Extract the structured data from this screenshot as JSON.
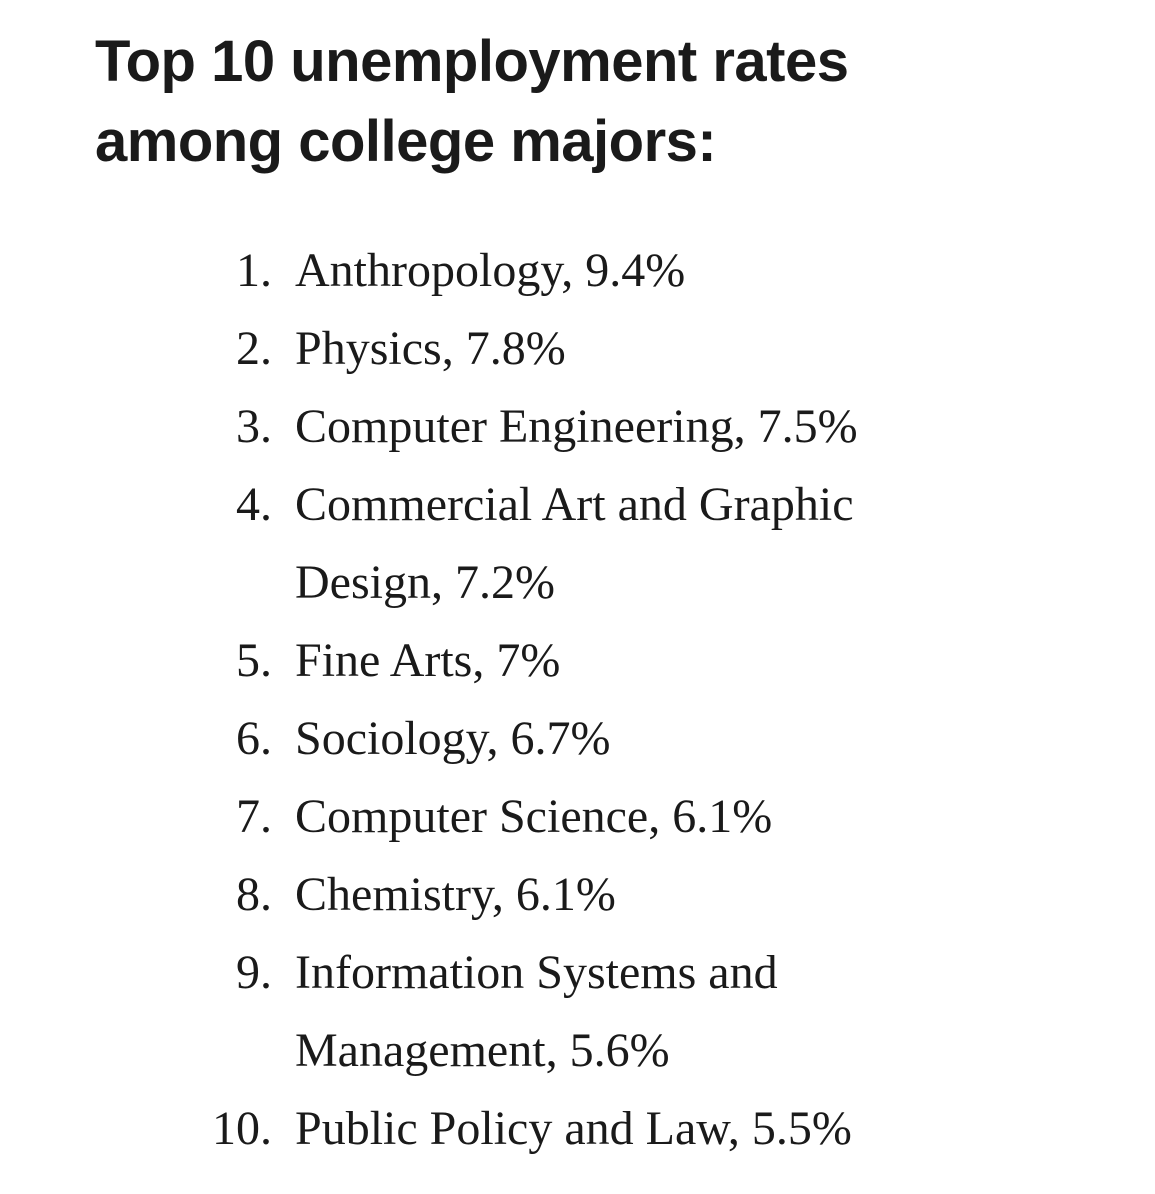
{
  "header": {
    "title": "Top 10 unemployment rates among college majors:"
  },
  "list": {
    "items": [
      {
        "number": "1.",
        "text": "Anthropology, 9.4%"
      },
      {
        "number": "2.",
        "text": "Physics, 7.8%"
      },
      {
        "number": "3.",
        "text": "Computer Engineering, 7.5%"
      },
      {
        "number": "4.",
        "text": "Commercial Art and Graphic Design, 7.2%"
      },
      {
        "number": "5.",
        "text": "Fine Arts, 7%"
      },
      {
        "number": "6.",
        "text": "Sociology, 6.7%"
      },
      {
        "number": "7.",
        "text": "Computer Science, 6.1%"
      },
      {
        "number": "8.",
        "text": "Chemistry, 6.1%"
      },
      {
        "number": "9.",
        "text": "Information Systems and Management, 5.6%"
      },
      {
        "number": "10.",
        "text": "Public Policy and Law, 5.5%"
      }
    ]
  }
}
